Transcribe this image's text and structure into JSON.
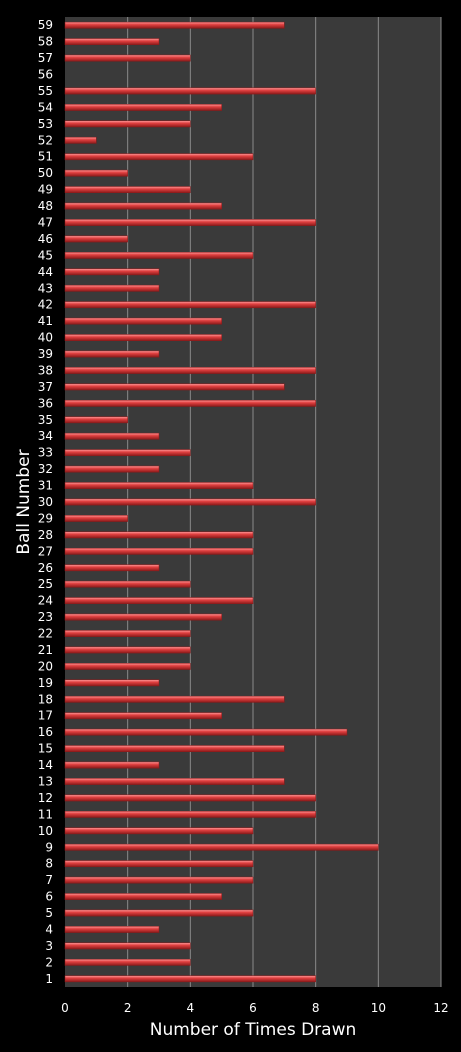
{
  "chart_data": {
    "type": "bar",
    "orientation": "horizontal",
    "xlabel": "Number of Times Drawn",
    "ylabel": "Ball Number",
    "xlim": [
      0,
      12
    ],
    "xticks": [
      0,
      2,
      4,
      6,
      8,
      10,
      12
    ],
    "grid": "vertical",
    "colors": {
      "background": "#000000",
      "plot_area": "#3a3a3a",
      "gridline": "#8a8a8a",
      "bar": "#e04040",
      "bar_dark": "#8c1a1a",
      "bar_light": "#ff9a9a",
      "text": "#ffffff"
    },
    "categories": [
      "1",
      "2",
      "3",
      "4",
      "5",
      "6",
      "7",
      "8",
      "9",
      "10",
      "11",
      "12",
      "13",
      "14",
      "15",
      "16",
      "17",
      "18",
      "19",
      "20",
      "21",
      "22",
      "23",
      "24",
      "25",
      "26",
      "27",
      "28",
      "29",
      "30",
      "31",
      "32",
      "33",
      "34",
      "35",
      "36",
      "37",
      "38",
      "39",
      "40",
      "41",
      "42",
      "43",
      "44",
      "45",
      "46",
      "47",
      "48",
      "49",
      "50",
      "51",
      "52",
      "53",
      "54",
      "55",
      "56",
      "57",
      "58",
      "59"
    ],
    "values": [
      8,
      4,
      4,
      3,
      6,
      5,
      6,
      6,
      10,
      6,
      8,
      8,
      7,
      3,
      7,
      9,
      5,
      7,
      3,
      4,
      4,
      4,
      5,
      6,
      4,
      3,
      6,
      6,
      2,
      8,
      6,
      3,
      4,
      3,
      2,
      8,
      7,
      8,
      3,
      5,
      5,
      8,
      3,
      3,
      6,
      2,
      8,
      5,
      4,
      2,
      6,
      1,
      4,
      5,
      8,
      0,
      4,
      3,
      7
    ]
  }
}
